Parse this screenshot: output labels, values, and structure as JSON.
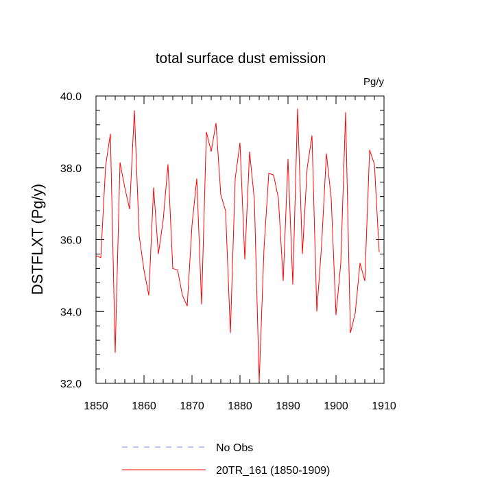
{
  "chart_data": {
    "type": "line",
    "title": "total surface dust emission",
    "units": "Pg/y",
    "xlabel": "",
    "ylabel": "DSTFLXT  (Pg/y)",
    "xlim": [
      1850,
      1910
    ],
    "ylim": [
      32.0,
      40.0
    ],
    "xticks": [
      1850,
      1860,
      1870,
      1880,
      1890,
      1900,
      1910
    ],
    "xtick_labels": [
      "1850",
      "1860",
      "1870",
      "1880",
      "1890",
      "1900",
      "1910"
    ],
    "yticks": [
      32.0,
      34.0,
      36.0,
      38.0,
      40.0
    ],
    "ytick_labels": [
      "32.0",
      "34.0",
      "36.0",
      "38.0",
      "40.0"
    ],
    "grid": false,
    "legend_position": "bottom",
    "series": [
      {
        "name": "No Obs",
        "color": "#8080ff",
        "dashed": true,
        "x": [],
        "values": []
      },
      {
        "name": "20TR_161 (1850-1909)",
        "color": "#ff0000",
        "dashed": false,
        "x": [
          1850,
          1851,
          1852,
          1853,
          1854,
          1855,
          1856,
          1857,
          1858,
          1859,
          1860,
          1861,
          1862,
          1863,
          1864,
          1865,
          1866,
          1867,
          1868,
          1869,
          1870,
          1871,
          1872,
          1873,
          1874,
          1875,
          1876,
          1877,
          1878,
          1879,
          1880,
          1881,
          1882,
          1883,
          1884,
          1885,
          1886,
          1887,
          1888,
          1889,
          1890,
          1891,
          1892,
          1893,
          1894,
          1895,
          1896,
          1897,
          1898,
          1899,
          1900,
          1901,
          1902,
          1903,
          1904,
          1905,
          1906,
          1907,
          1908,
          1909
        ],
        "values": [
          35.55,
          35.5,
          38.05,
          38.95,
          32.85,
          38.15,
          37.45,
          36.85,
          39.6,
          36.1,
          35.15,
          34.45,
          37.45,
          35.6,
          36.55,
          38.1,
          35.2,
          35.15,
          34.45,
          34.15,
          36.4,
          37.7,
          34.2,
          39.0,
          38.45,
          39.25,
          37.25,
          36.8,
          33.4,
          37.7,
          38.7,
          35.45,
          38.45,
          37.1,
          32.05,
          35.75,
          37.85,
          37.8,
          37.15,
          34.85,
          38.25,
          34.75,
          39.65,
          35.6,
          38.0,
          38.9,
          34.0,
          35.85,
          38.4,
          37.15,
          33.9,
          35.35,
          39.55,
          33.4,
          33.95,
          35.35,
          34.85,
          38.5,
          38.1,
          35.65
        ]
      }
    ]
  }
}
